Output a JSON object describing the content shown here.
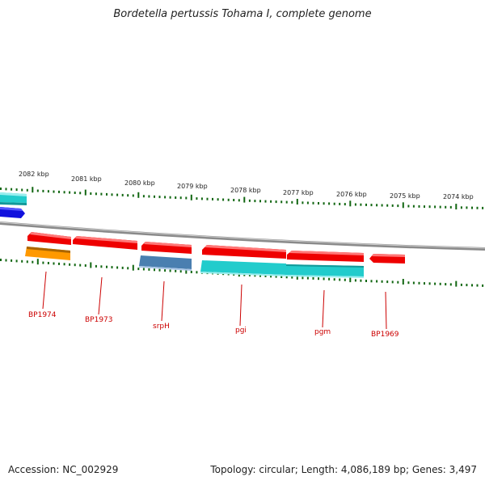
{
  "title": "Bordetella pertussis Tohama I, complete genome",
  "accession_text": "Accession: NC_002929",
  "info_text": "Topology: circular; Length: 4,086,189 bp; Genes: 3,497",
  "scale_labels": [
    "2082 kbp",
    "2081 kbp",
    "2080 kbp",
    "2079 kbp",
    "2078 kbp",
    "2077 kbp",
    "2076 kbp",
    "2075 kbp",
    "2074 kbp"
  ],
  "gene_labels": [
    "BP1974",
    "BP1973",
    "srpH",
    "pgi",
    "pgm",
    "BP1969"
  ],
  "colors": {
    "forward_red": "#ee0000",
    "cyan": "#22cccc",
    "blue": "#1111dd",
    "orange": "#ff9900",
    "steel": "#4a7fb0",
    "tick": "#116611",
    "backbone": "#888888",
    "label": "#cc0000"
  }
}
